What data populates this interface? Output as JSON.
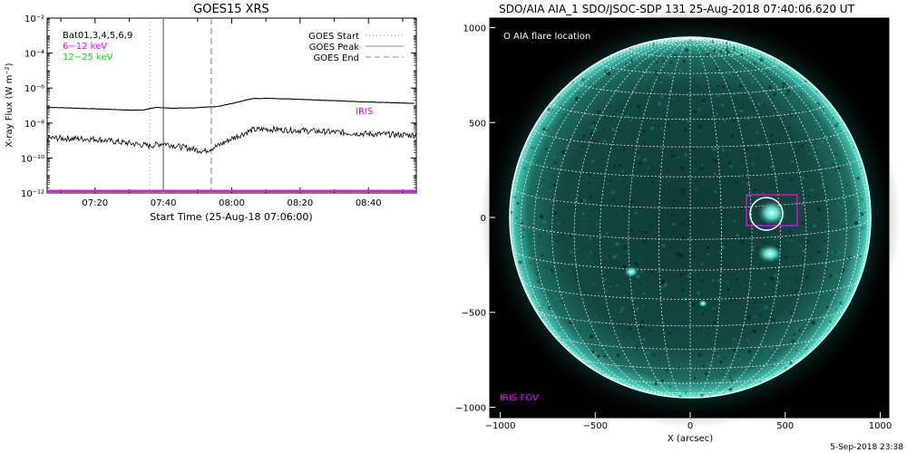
{
  "goes": {
    "title": "GOES15 XRS",
    "ylabel": "X-ray Flux (W m⁻²)",
    "xlabel": "Start Time (25-Aug-18 07:06:00)",
    "legend_left": [
      {
        "text": "Bat01,3,4,5,6,9",
        "color": "#000000"
      },
      {
        "text": "6−12 keV",
        "color": "#ff00ff"
      },
      {
        "text": "12−25 keV",
        "color": "#00dd00"
      }
    ],
    "legend_right": [
      {
        "text": "GOES Start",
        "style": "dotted"
      },
      {
        "text": "GOES Peak",
        "style": "solid"
      },
      {
        "text": "GOES End",
        "style": "dashed"
      }
    ],
    "iris_label": "IRIS",
    "colors": {
      "iris": "#ff00ff",
      "marker": "#999999"
    }
  },
  "chart_data": [
    {
      "type": "line",
      "title": "GOES15 XRS",
      "xlabel": "Start Time (25-Aug-18 07:06:00)",
      "ylabel": "X-ray Flux (W m^-2)",
      "xlim": [
        "07:06",
        "08:54"
      ],
      "ylim": [
        1e-12,
        0.01
      ],
      "yscale": "log",
      "xticks": [
        "07:20",
        "07:40",
        "08:00",
        "08:20",
        "08:40"
      ],
      "yticks": [
        "10⁻¹²",
        "10⁻¹⁰",
        "10⁻⁸",
        "10⁻⁶",
        "10⁻⁴",
        "10⁻²"
      ],
      "series": [
        {
          "x": [
            "07:06",
            "07:20",
            "07:30",
            "07:34",
            "07:38",
            "07:42",
            "07:50",
            "07:56",
            "08:00",
            "08:06",
            "08:10",
            "08:20",
            "08:30",
            "08:40",
            "08:54"
          ],
          "values": [
            8e-08,
            6.5e-08,
            5.5e-08,
            5.5e-08,
            8e-08,
            7e-08,
            7.5e-08,
            9e-08,
            1.3e-07,
            2.5e-07,
            2.6e-07,
            2.3e-07,
            1.9e-07,
            1.6e-07,
            1.3e-07
          ]
        },
        {
          "x": [
            "07:06",
            "07:20",
            "07:30",
            "07:36",
            "07:40",
            "07:46",
            "07:52",
            "07:56",
            "08:00",
            "08:06",
            "08:10",
            "08:20",
            "08:30",
            "08:40",
            "08:54"
          ],
          "values": [
            1.4e-09,
            1.2e-09,
            7e-10,
            5e-10,
            7e-10,
            4e-10,
            2.5e-10,
            5e-10,
            1.3e-09,
            4e-09,
            4.5e-09,
            3.8e-09,
            3e-09,
            2.4e-09,
            2e-09
          ]
        },
        {
          "x": [
            "07:06",
            "08:54"
          ],
          "values": [
            1.3e-12,
            1.3e-12
          ]
        }
      ],
      "markers": {
        "goes_start": "07:36",
        "goes_peak": "07:40",
        "goes_end": "07:54"
      }
    }
  ],
  "aia": {
    "title": "SDO/AIA AIA_1 SDO/JSOC-SDP 131 25-Aug-2018 07:40:06.620 UT",
    "flare_label": "O AIA flare location",
    "iris_fov_label": "IRIS FOV",
    "xlabel": "X (arcsec)",
    "xticks": [
      "−1000",
      "−500",
      "0",
      "500",
      "1000"
    ],
    "yticks": [
      "1000",
      "500",
      "0",
      "−500",
      "−1000"
    ],
    "timestamp": "5-Sep-2018 23:38",
    "colors": {
      "sun": "#36c9b6",
      "fov": "#ff00ff"
    }
  }
}
